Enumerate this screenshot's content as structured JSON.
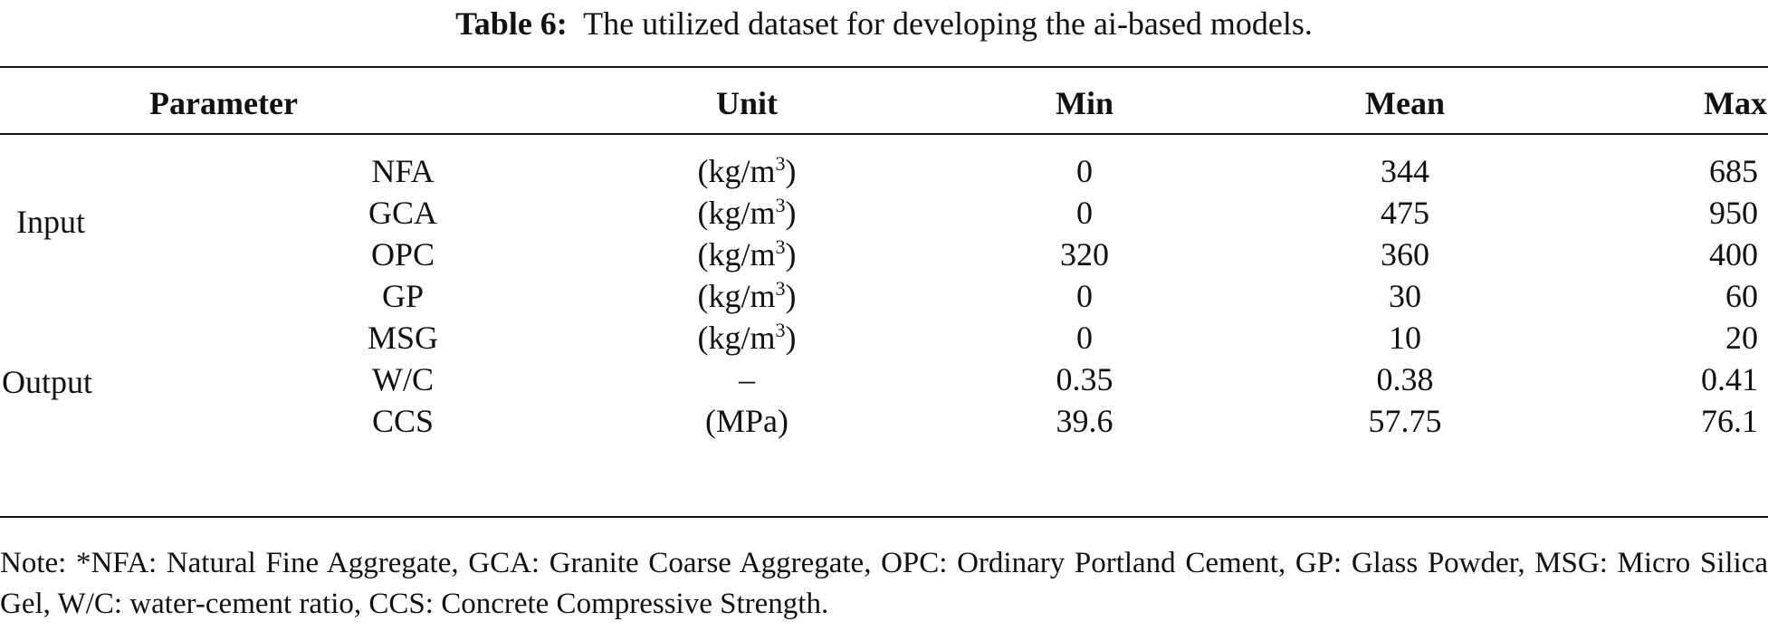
{
  "caption": {
    "label": "Table 6:",
    "text": "The utilized dataset for developing the ai-based models."
  },
  "headers": {
    "parameter": "Parameter",
    "unit": "Unit",
    "min": "Min",
    "mean": "Mean",
    "max": "Max"
  },
  "groups": {
    "input": "Input",
    "output": "Output"
  },
  "rows": [
    {
      "name": "NFA",
      "unit_base": "(kg/m",
      "unit_sup": "3",
      "unit_close": ")",
      "min": "0",
      "mean": "344",
      "max": "685"
    },
    {
      "name": "GCA",
      "unit_base": "(kg/m",
      "unit_sup": "3",
      "unit_close": ")",
      "min": "0",
      "mean": "475",
      "max": "950"
    },
    {
      "name": "OPC",
      "unit_base": "(kg/m",
      "unit_sup": "3",
      "unit_close": ")",
      "min": "320",
      "mean": "360",
      "max": "400"
    },
    {
      "name": "GP",
      "unit_base": "(kg/m",
      "unit_sup": "3",
      "unit_close": ")",
      "min": "0",
      "mean": "30",
      "max": "60"
    },
    {
      "name": "MSG",
      "unit_base": "(kg/m",
      "unit_sup": "3",
      "unit_close": ")",
      "min": "0",
      "mean": "10",
      "max": "20"
    },
    {
      "name": "W/C",
      "unit_base": "–",
      "unit_sup": "",
      "unit_close": "",
      "min": "0.35",
      "mean": "0.38",
      "max": "0.41"
    },
    {
      "name": "CCS",
      "unit_base": "(MPa)",
      "unit_sup": "",
      "unit_close": "",
      "min": "39.6",
      "mean": "57.75",
      "max": "76.1"
    }
  ],
  "note": "Note: *NFA: Natural Fine Aggregate, GCA: Granite Coarse Aggregate, OPC: Ordinary Portland Cement, GP: Glass Powder, MSG: Micro Silica Gel, W/C: water-cement ratio, CCS: Concrete Compressive Strength."
}
